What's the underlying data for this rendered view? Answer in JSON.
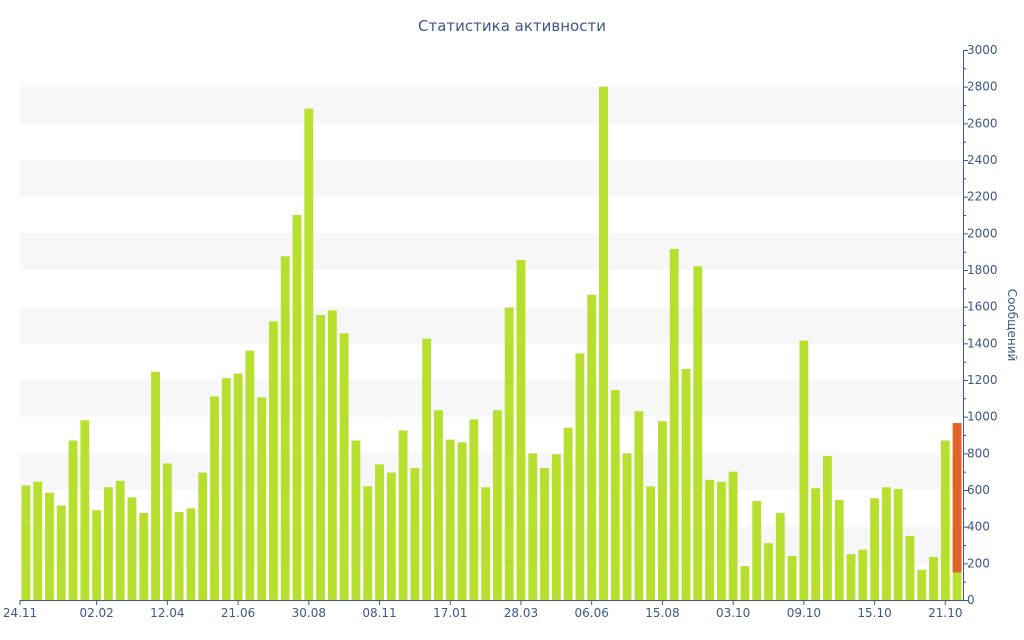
{
  "chart_data": {
    "type": "bar",
    "title": "Статистика активности",
    "xlabel": "",
    "ylabel": "Сообщений",
    "ylim": [
      0,
      3000
    ],
    "yticks": [
      0,
      200,
      400,
      600,
      800,
      1000,
      1200,
      1400,
      1600,
      1800,
      2000,
      2200,
      2400,
      2600,
      2800,
      3000
    ],
    "y_axis_position": "right",
    "grid": "alternating-bands",
    "xtick_labels": [
      {
        "index": 0,
        "label": "24.11"
      },
      {
        "index": 6,
        "label": "02.02"
      },
      {
        "index": 12,
        "label": "12.04"
      },
      {
        "index": 18,
        "label": "21.06"
      },
      {
        "index": 24,
        "label": "30.08"
      },
      {
        "index": 30,
        "label": "08.11"
      },
      {
        "index": 36,
        "label": "17.01"
      },
      {
        "index": 42,
        "label": "28.03"
      },
      {
        "index": 48,
        "label": "06.06"
      },
      {
        "index": 54,
        "label": "15.08"
      },
      {
        "index": 60,
        "label": "03.10"
      },
      {
        "index": 66,
        "label": "09.10"
      },
      {
        "index": 72,
        "label": "15.10"
      },
      {
        "index": 78,
        "label": "21.10"
      }
    ],
    "values": [
      625,
      645,
      585,
      515,
      870,
      980,
      490,
      615,
      650,
      560,
      475,
      1245,
      745,
      480,
      500,
      695,
      1110,
      1210,
      1235,
      1360,
      1105,
      1520,
      1875,
      2100,
      2680,
      1555,
      1580,
      1455,
      870,
      620,
      740,
      695,
      925,
      720,
      1425,
      1035,
      875,
      860,
      985,
      615,
      1035,
      1595,
      1855,
      800,
      720,
      795,
      940,
      1345,
      1665,
      2800,
      1145,
      800,
      1030,
      620,
      975,
      1915,
      1260,
      1820,
      655,
      645,
      700,
      185,
      540,
      310,
      475,
      240,
      1415,
      610,
      785,
      545,
      250,
      275,
      555,
      615,
      605,
      350,
      165,
      235,
      870,
      965
    ],
    "bar_color": "#b7e02e",
    "highlight": {
      "index": 79,
      "color": "#e3622a",
      "from": 150
    },
    "band_color": "#f7f7f7",
    "axis_color": "#3e5887"
  }
}
